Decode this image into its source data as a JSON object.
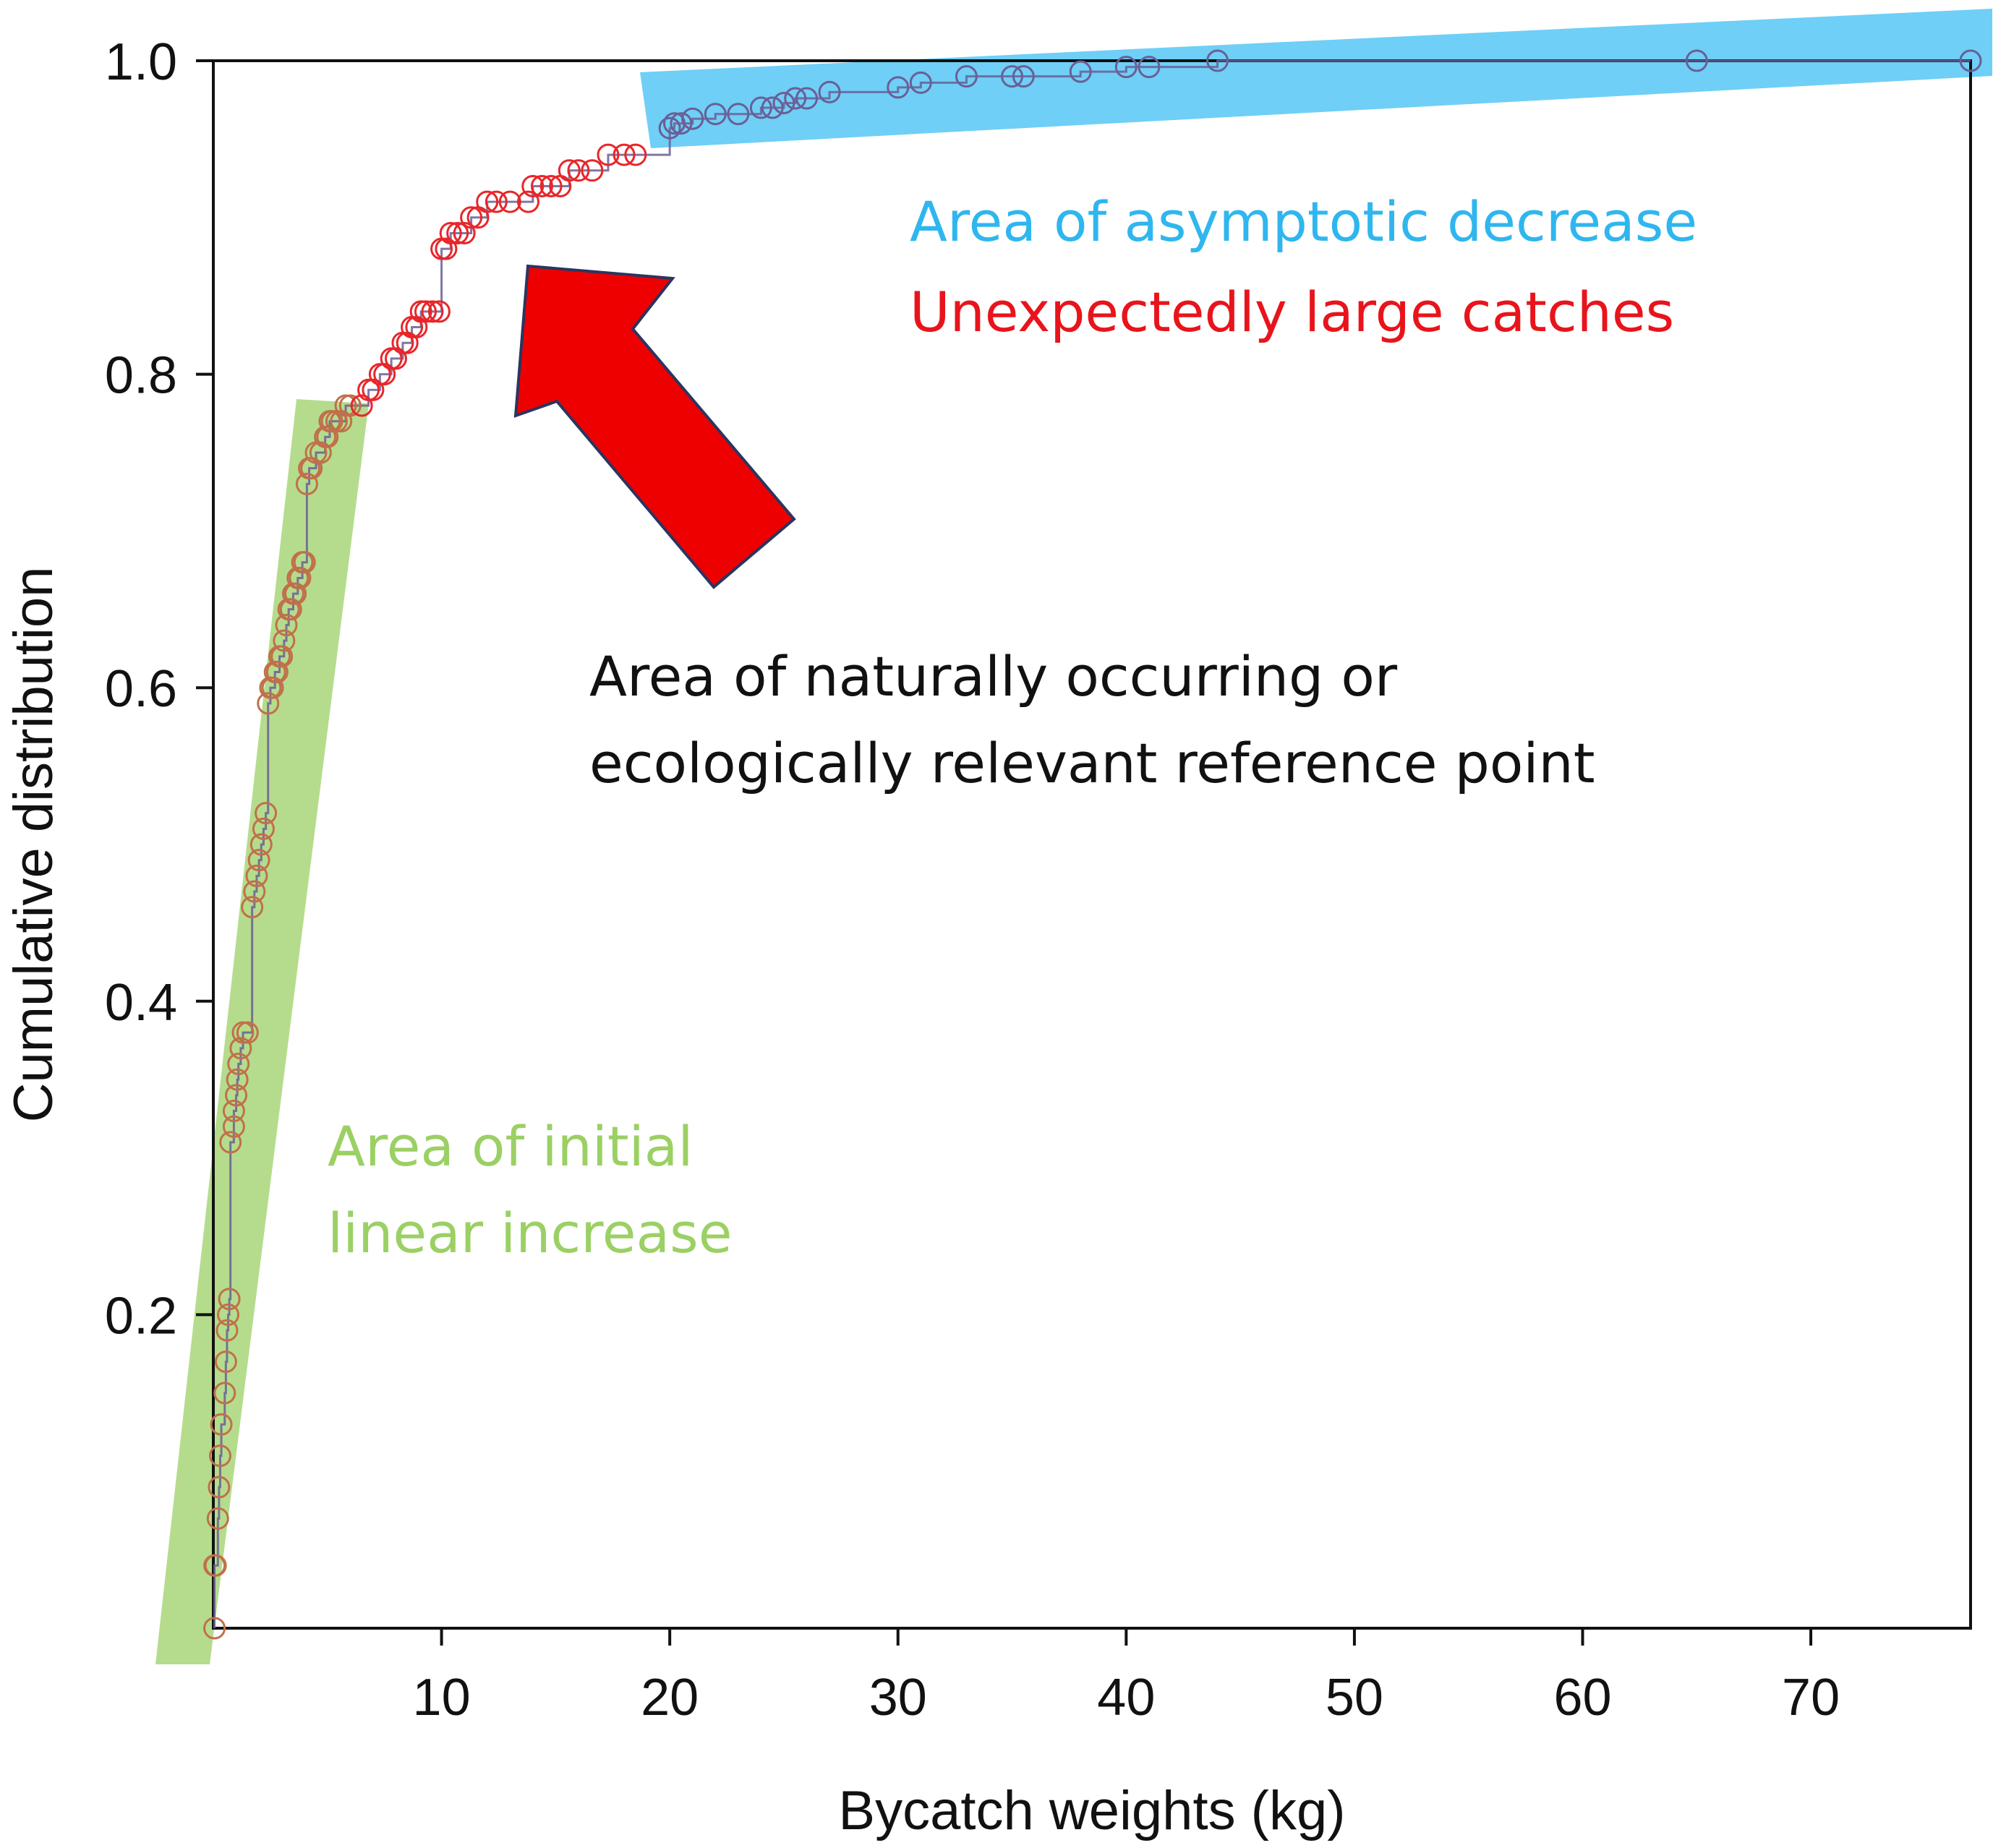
{
  "chart_data": {
    "type": "scatter",
    "xlabel": "Bycatch weights (kg)",
    "ylabel": "Cumulative distribution",
    "xlim": [
      0,
      77
    ],
    "ylim": [
      0,
      1.0
    ],
    "x_ticks": [
      10,
      20,
      30,
      40,
      50,
      60,
      70
    ],
    "y_ticks": [
      0.2,
      0.4,
      0.6,
      0.8,
      1.0
    ],
    "grid": false,
    "annotations": {
      "linear": [
        "Area of initial",
        "linear increase"
      ],
      "asymptotic": "Area of asymptotic decrease",
      "large": "Unexpectedly large catches",
      "reference": [
        "Area of naturally occurring or",
        "ecologically relevant reference point"
      ]
    },
    "colors": {
      "linear_band": "#b5dc8c",
      "asymptotic_band": "#6fcff6",
      "arrow": "#ee0000",
      "arrow_outline": "#2a3560",
      "linear_points": "#c0704a",
      "large_points": "#e8262a",
      "asymptotic_points": "#6a5f96",
      "text_linear": "#9bd064",
      "text_asymptotic": "#2fb6ee",
      "text_large": "#e8141c",
      "text_reference": "#111111"
    },
    "series": [
      {
        "group": "linear",
        "x": [
          0.05,
          0.05,
          0.1,
          0.2,
          0.25,
          0.3,
          0.35,
          0.5,
          0.55,
          0.6,
          0.65,
          0.7,
          0.75,
          0.9,
          0.9,
          1.0,
          1.05,
          1.1,
          1.2,
          1.3,
          1.5,
          1.7,
          1.8,
          1.9,
          2.0,
          2.1,
          2.2,
          2.3,
          2.4,
          2.5,
          2.6,
          2.7,
          2.8,
          2.9,
          3.0,
          3.1,
          3.2,
          3.3,
          3.4,
          3.5,
          3.6,
          3.7,
          3.8,
          3.9,
          4.0,
          4.1,
          4.2,
          4.3,
          4.5,
          4.7,
          4.9,
          5.0,
          5.1,
          5.2,
          5.4,
          5.6,
          5.8,
          6.0
        ],
        "y": [
          0.0,
          0.04,
          0.04,
          0.07,
          0.09,
          0.11,
          0.13,
          0.15,
          0.17,
          0.19,
          0.2,
          0.21,
          0.31,
          0.32,
          0.33,
          0.34,
          0.35,
          0.36,
          0.37,
          0.38,
          0.38,
          0.46,
          0.47,
          0.48,
          0.49,
          0.5,
          0.51,
          0.52,
          0.59,
          0.6,
          0.6,
          0.61,
          0.61,
          0.62,
          0.62,
          0.63,
          0.64,
          0.65,
          0.65,
          0.66,
          0.66,
          0.67,
          0.67,
          0.68,
          0.68,
          0.73,
          0.74,
          0.74,
          0.75,
          0.75,
          0.76,
          0.76,
          0.77,
          0.77,
          0.77,
          0.77,
          0.78,
          0.78
        ]
      },
      {
        "group": "large",
        "x": [
          6.5,
          6.8,
          7.0,
          7.3,
          7.5,
          7.8,
          8.0,
          8.3,
          8.5,
          8.7,
          8.9,
          9.1,
          9.3,
          9.6,
          9.9,
          10.0,
          10.2,
          10.4,
          10.7,
          11.0,
          11.3,
          11.6,
          12.0,
          12.4,
          13.0,
          13.8,
          14.0,
          14.4,
          14.8,
          15.2,
          15.6,
          16.0,
          16.6,
          17.3,
          18.0,
          18.5
        ],
        "y": [
          0.78,
          0.79,
          0.79,
          0.8,
          0.8,
          0.81,
          0.81,
          0.82,
          0.82,
          0.83,
          0.83,
          0.84,
          0.84,
          0.84,
          0.84,
          0.88,
          0.88,
          0.89,
          0.89,
          0.89,
          0.9,
          0.9,
          0.91,
          0.91,
          0.91,
          0.91,
          0.92,
          0.92,
          0.92,
          0.92,
          0.93,
          0.93,
          0.93,
          0.94,
          0.94,
          0.94
        ]
      },
      {
        "group": "asymptotic",
        "x": [
          20.0,
          20.2,
          20.5,
          21.0,
          22.0,
          23.0,
          24.0,
          24.5,
          25.0,
          25.5,
          26.0,
          27.0,
          30.0,
          31.0,
          33.0,
          35.0,
          35.5,
          38.0,
          40.0,
          41.0,
          44.0,
          65.0,
          77.0
        ],
        "y": [
          0.957,
          0.96,
          0.96,
          0.963,
          0.966,
          0.966,
          0.97,
          0.97,
          0.973,
          0.976,
          0.976,
          0.98,
          0.983,
          0.986,
          0.99,
          0.99,
          0.99,
          0.993,
          0.996,
          0.996,
          1.0,
          1.0,
          1.0
        ]
      }
    ]
  }
}
